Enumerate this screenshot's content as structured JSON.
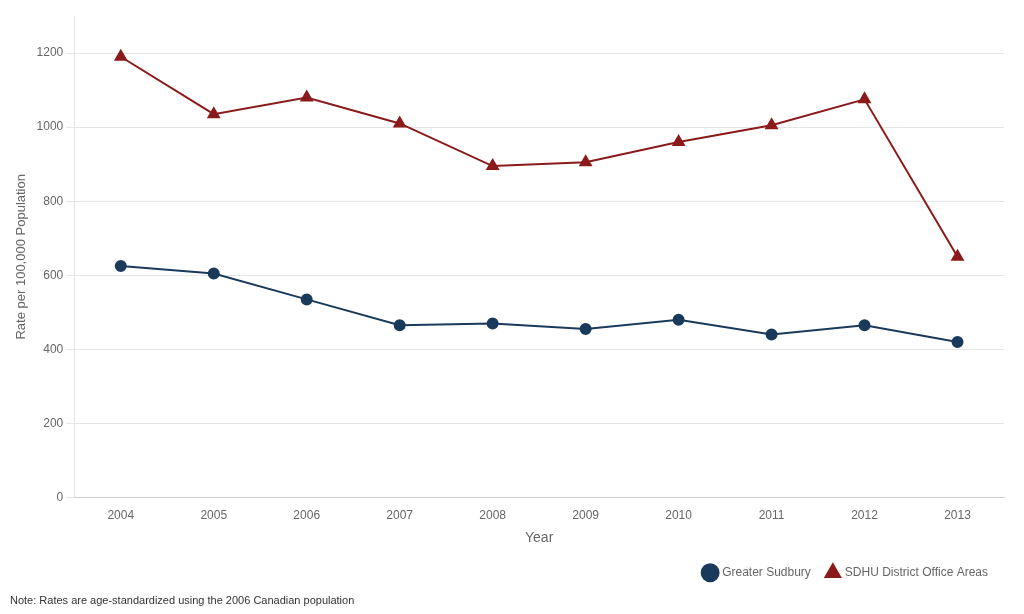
{
  "chart_data": {
    "type": "line",
    "x": [
      2004,
      2005,
      2006,
      2007,
      2008,
      2009,
      2010,
      2011,
      2012,
      2013
    ],
    "series": [
      {
        "name": "Greater Sudbury",
        "color": "#1a3a5c",
        "marker": "circle",
        "values": [
          625,
          605,
          535,
          465,
          470,
          455,
          480,
          440,
          465,
          420
        ]
      },
      {
        "name": "SDHU District Office Areas",
        "color": "#8b1a1a",
        "marker": "triangle",
        "values": [
          1190,
          1035,
          1080,
          1010,
          895,
          905,
          960,
          1005,
          1075,
          650
        ]
      }
    ],
    "xlabel": "Year",
    "ylabel": "Rate per 100,000 Population",
    "xlim": [
      2003.5,
      2013.5
    ],
    "xticks": [
      2004,
      2005,
      2006,
      2007,
      2008,
      2009,
      2010,
      2011,
      2012,
      2013
    ],
    "ylim": [
      0,
      1300
    ],
    "yticks": [
      0,
      200,
      400,
      600,
      800,
      1000,
      1200
    ],
    "grid": "y",
    "legend": "lower right",
    "annotations": [
      "Note: Rates are age-standardized using the 2006 Canadian population"
    ]
  }
}
